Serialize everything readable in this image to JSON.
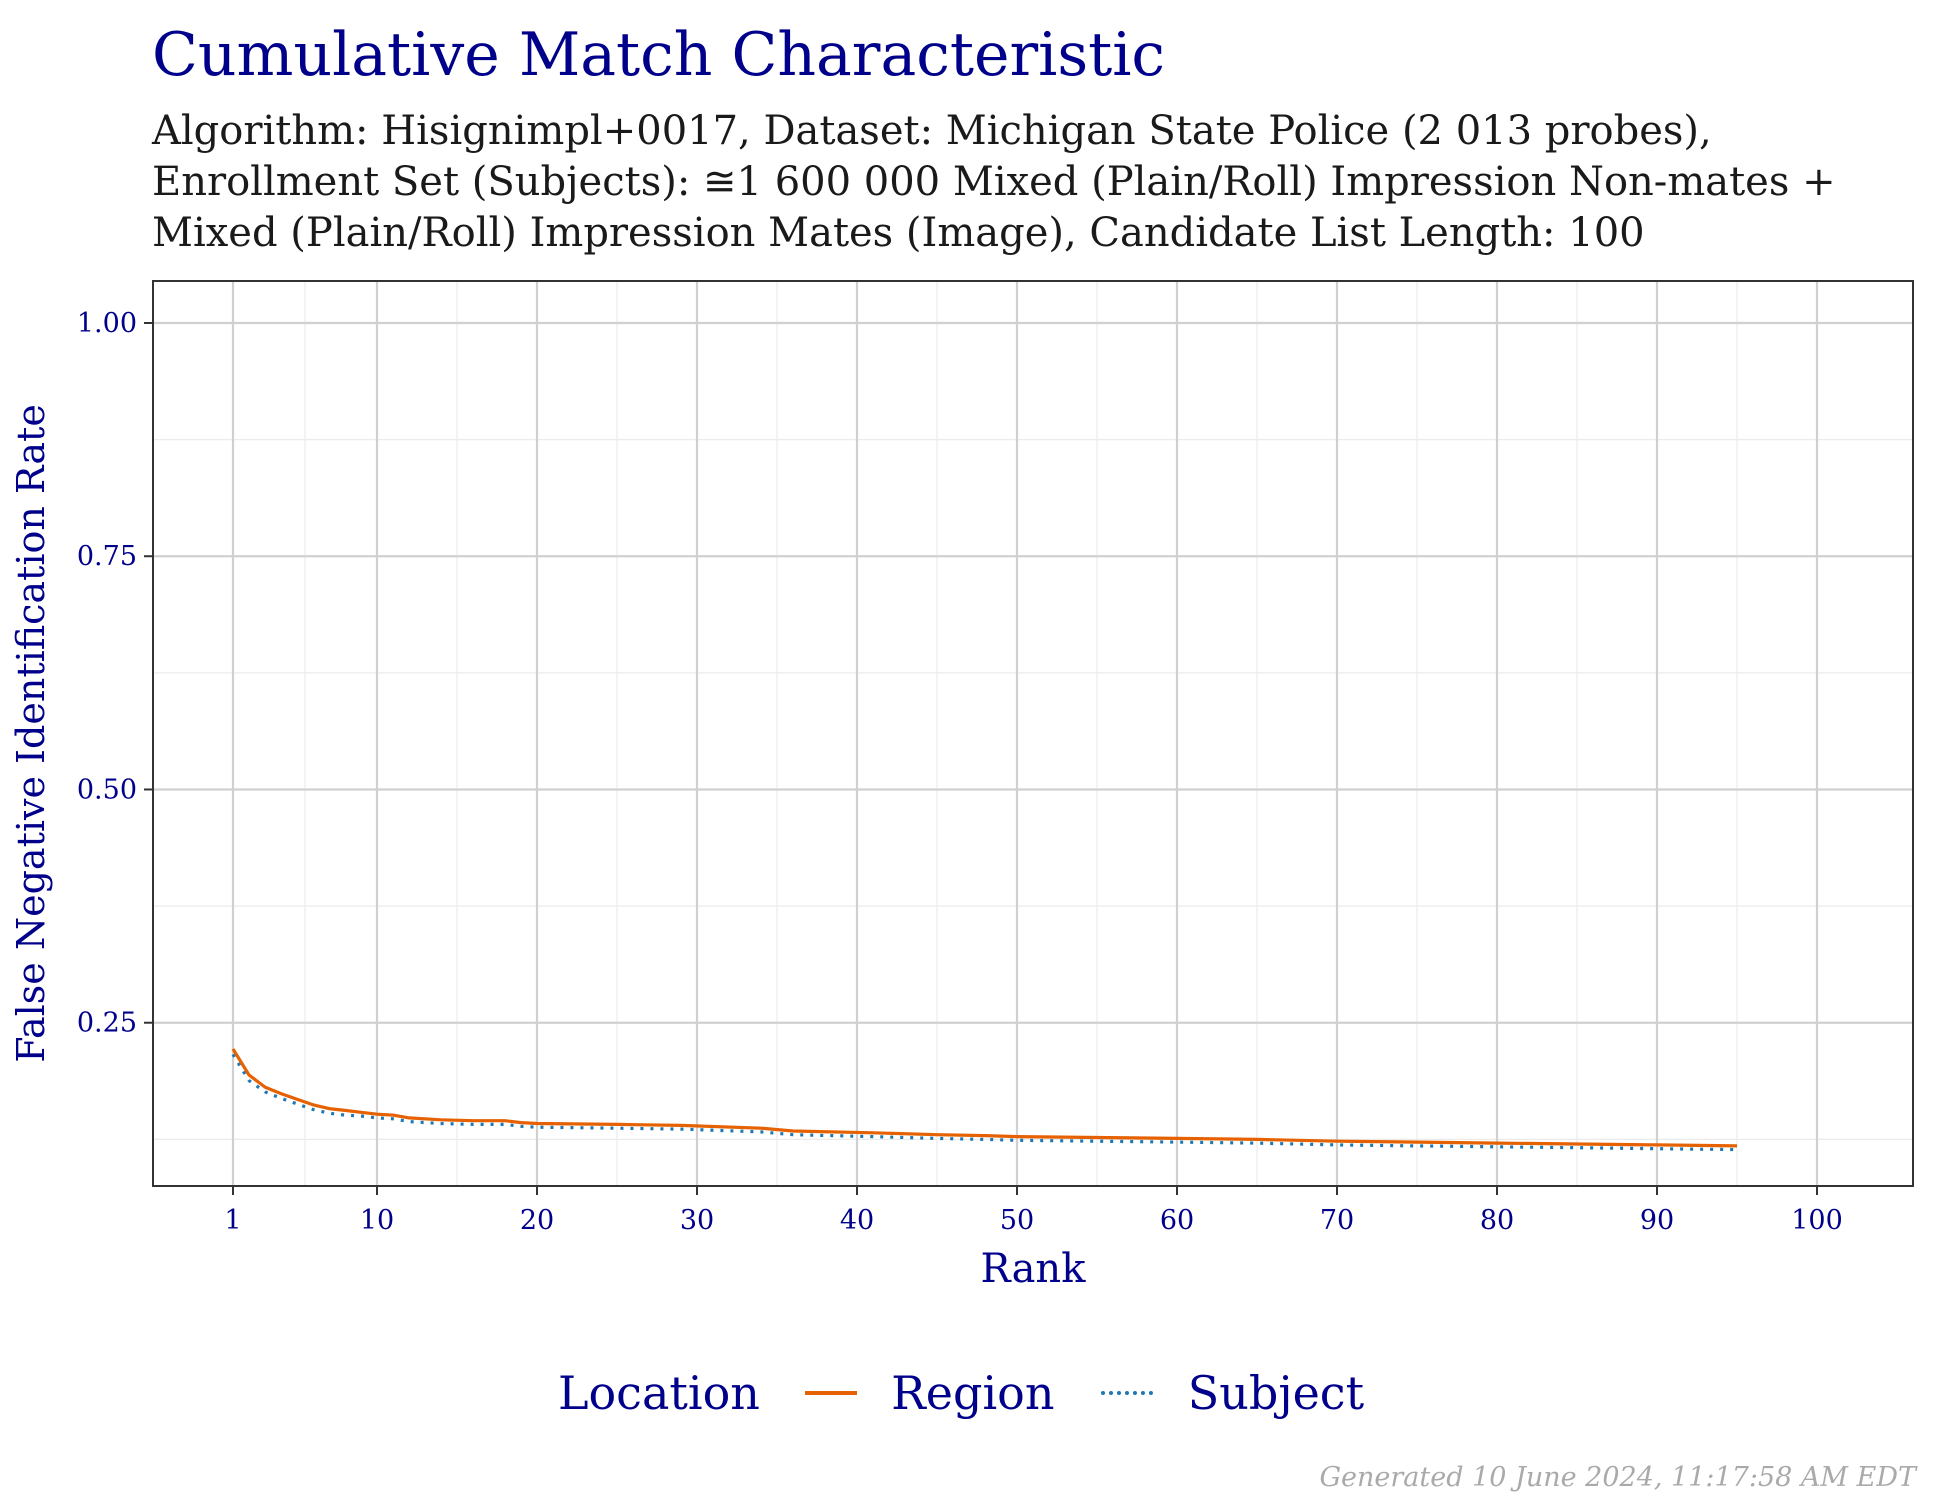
{
  "title": "Cumulative Match Characteristic",
  "subtitle_lines": [
    "Algorithm: Hisignimpl+0017, Dataset: Michigan State Police (2 013 probes),",
    "Enrollment Set (Subjects): ≅1 600 000 Mixed (Plain/Roll) Impression Non-mates +",
    "Mixed (Plain/Roll) Impression Mates (Image), Candidate List Length: 100"
  ],
  "footer": "Generated 10 June 2024, 11:17:58 AM EDT",
  "legend": {
    "title": "Location"
  },
  "colors": {
    "title": "#00008b",
    "region": "#e66101",
    "subject": "#1f78b4"
  },
  "chart_data": {
    "type": "line",
    "xlabel": "Rank",
    "ylabel": "False Negative Identification Rate",
    "xlim": [
      -4,
      106
    ],
    "ylim": [
      0.075,
      1.045
    ],
    "x_ticks": [
      1,
      10,
      20,
      30,
      40,
      50,
      60,
      70,
      80,
      90,
      100
    ],
    "y_ticks": [
      0.25,
      0.5,
      0.75,
      1.0
    ],
    "y_tick_labels": [
      "0.25",
      "0.50",
      "0.75",
      "1.00"
    ],
    "grid": true,
    "legend_position": "bottom",
    "series": [
      {
        "name": "Region",
        "line_style": "solid",
        "x": [
          1,
          2,
          3,
          4,
          5,
          6,
          7,
          8,
          9,
          10,
          11,
          12,
          14,
          16,
          18,
          19,
          20,
          25,
          29,
          34,
          36,
          41,
          45,
          48,
          50,
          55,
          60,
          65,
          70,
          75,
          80,
          85,
          90,
          95
        ],
        "y": [
          0.222,
          0.194,
          0.181,
          0.174,
          0.168,
          0.162,
          0.158,
          0.156,
          0.154,
          0.152,
          0.151,
          0.148,
          0.146,
          0.145,
          0.145,
          0.143,
          0.142,
          0.141,
          0.14,
          0.137,
          0.134,
          0.132,
          0.13,
          0.129,
          0.128,
          0.127,
          0.126,
          0.125,
          0.123,
          0.122,
          0.121,
          0.12,
          0.119,
          0.118
        ]
      },
      {
        "name": "Subject",
        "line_style": "dotted",
        "x": [
          1,
          2,
          3,
          4,
          5,
          6,
          7,
          8,
          9,
          10,
          11,
          12,
          14,
          16,
          18,
          19,
          20,
          25,
          29,
          34,
          36,
          41,
          45,
          48,
          50,
          55,
          60,
          65,
          70,
          75,
          80,
          85,
          90,
          95
        ],
        "y": [
          0.216,
          0.188,
          0.176,
          0.169,
          0.163,
          0.157,
          0.153,
          0.151,
          0.15,
          0.148,
          0.147,
          0.144,
          0.142,
          0.141,
          0.141,
          0.139,
          0.138,
          0.137,
          0.136,
          0.133,
          0.13,
          0.128,
          0.126,
          0.125,
          0.124,
          0.123,
          0.122,
          0.121,
          0.119,
          0.118,
          0.117,
          0.116,
          0.115,
          0.114
        ]
      }
    ]
  }
}
